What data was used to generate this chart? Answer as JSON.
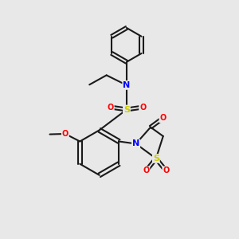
{
  "background_color": "#e8e8e8",
  "bond_color": "#1a1a1a",
  "bond_width": 1.5,
  "atom_colors": {
    "N": "#0000ff",
    "S": "#cccc00",
    "O": "#ff0000",
    "C": "#1a1a1a"
  },
  "figsize": [
    3.0,
    3.0
  ],
  "dpi": 100
}
